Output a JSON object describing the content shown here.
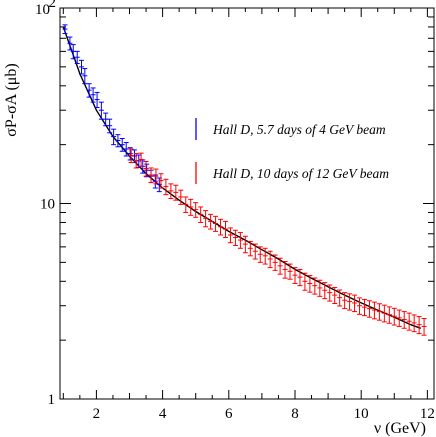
{
  "chart_data": {
    "type": "scatter",
    "title": "",
    "xlabel": "ν (GeV)",
    "ylabel": "σP-σA (μb)",
    "xlim": [
      0.9,
      12.2
    ],
    "ylim": [
      1,
      100
    ],
    "yscale": "log",
    "xticks": [
      2,
      4,
      6,
      8,
      10,
      12
    ],
    "xtick_labels": [
      "2",
      "4",
      "6",
      "8",
      "10",
      "12"
    ],
    "yticks": [
      1,
      10,
      100
    ],
    "ytick_labels": [
      "1",
      "10",
      "10 2"
    ],
    "grid": false,
    "legend_position": "right",
    "series": [
      {
        "name": "Hall D, 5.7 days of 4 GeV beam",
        "color": "#0000ff",
        "x": [
          1.05,
          1.2,
          1.3,
          1.42,
          1.55,
          1.65,
          1.78,
          1.9,
          2.02,
          2.15,
          2.28,
          2.4,
          2.52,
          2.65,
          2.78,
          2.9,
          3.02,
          3.15,
          3.28,
          3.4,
          3.52,
          3.65,
          3.78,
          3.9
        ],
        "y": [
          78,
          66,
          60,
          56,
          50,
          45,
          38,
          36,
          34,
          30,
          27,
          25,
          22,
          21,
          20,
          19,
          18,
          17.5,
          16.5,
          15.5,
          14.8,
          13.8,
          13,
          12.5
        ],
        "err": [
          4,
          5,
          5,
          4,
          4,
          4,
          3,
          3,
          3,
          3,
          2,
          2,
          2,
          1.5,
          1.5,
          1.5,
          1.3,
          1.3,
          1.2,
          1.2,
          1.1,
          1,
          1,
          1
        ]
      },
      {
        "name": "Hall D, 10 days of 12 GeV beam",
        "color": "#ff0000",
        "x": [
          3.05,
          3.2,
          3.35,
          3.5,
          3.65,
          3.8,
          3.95,
          4.1,
          4.25,
          4.4,
          4.55,
          4.7,
          4.85,
          5.0,
          5.15,
          5.3,
          5.45,
          5.6,
          5.75,
          5.9,
          6.05,
          6.2,
          6.35,
          6.5,
          6.65,
          6.8,
          6.95,
          7.1,
          7.25,
          7.4,
          7.55,
          7.7,
          7.85,
          8.0,
          8.15,
          8.3,
          8.45,
          8.6,
          8.75,
          8.9,
          9.05,
          9.2,
          9.35,
          9.5,
          9.65,
          9.8,
          9.95,
          10.1,
          10.25,
          10.4,
          10.55,
          10.7,
          10.85,
          11.0,
          11.15,
          11.3,
          11.45,
          11.6,
          11.75,
          11.9
        ],
        "y": [
          17.6,
          16.6,
          16.8,
          15.1,
          14.0,
          13.8,
          13.1,
          12.2,
          11.6,
          11.4,
          10.8,
          9.9,
          9.6,
          9.3,
          8.8,
          8.4,
          8.1,
          7.9,
          7.6,
          7.4,
          6.9,
          6.7,
          6.5,
          6.2,
          5.9,
          5.7,
          5.5,
          5.4,
          5.2,
          5.0,
          4.8,
          4.6,
          4.5,
          4.3,
          4.2,
          4.0,
          3.9,
          3.8,
          3.7,
          3.6,
          3.5,
          3.4,
          3.3,
          3.2,
          3.15,
          3.1,
          3.0,
          2.95,
          2.9,
          2.85,
          2.8,
          2.75,
          2.7,
          2.65,
          2.6,
          2.55,
          2.5,
          2.45,
          2.4,
          2.35
        ],
        "err": [
          1.4,
          1.4,
          1.3,
          1.3,
          1.2,
          1.2,
          1.1,
          1.1,
          1.0,
          1.0,
          0.9,
          0.9,
          0.9,
          0.8,
          0.8,
          0.8,
          0.7,
          0.7,
          0.7,
          0.7,
          0.6,
          0.6,
          0.6,
          0.6,
          0.5,
          0.5,
          0.5,
          0.5,
          0.5,
          0.45,
          0.45,
          0.45,
          0.4,
          0.4,
          0.4,
          0.4,
          0.38,
          0.36,
          0.35,
          0.34,
          0.33,
          0.32,
          0.31,
          0.3,
          0.3,
          0.3,
          0.29,
          0.28,
          0.28,
          0.28,
          0.27,
          0.27,
          0.26,
          0.26,
          0.25,
          0.25,
          0.25,
          0.24,
          0.24,
          0.23
        ]
      }
    ],
    "fit_curve": {
      "color": "#000000",
      "x": [
        1.0,
        1.5,
        2.0,
        2.5,
        3.0,
        3.5,
        4.0,
        4.5,
        5.0,
        5.5,
        6.0,
        6.5,
        7.0,
        7.5,
        8.0,
        8.5,
        9.0,
        9.5,
        10.0,
        10.5,
        11.0,
        11.5,
        11.8
      ],
      "y": [
        80,
        46,
        30,
        22,
        17.5,
        14.2,
        12.0,
        10.4,
        9.1,
        8.1,
        7.2,
        6.5,
        5.8,
        5.2,
        4.6,
        4.15,
        3.75,
        3.4,
        3.1,
        2.85,
        2.62,
        2.4,
        2.3
      ]
    }
  }
}
